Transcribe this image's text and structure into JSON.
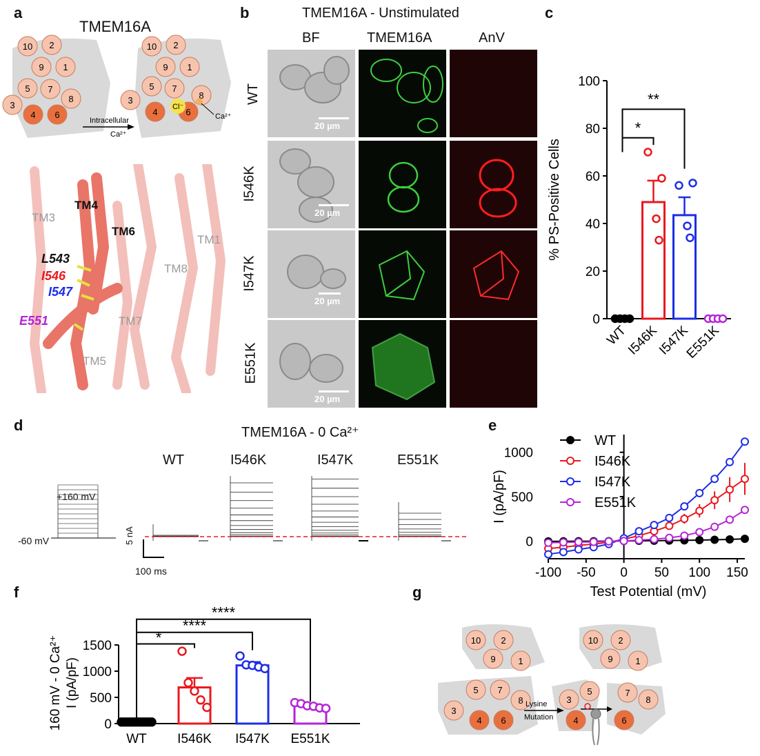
{
  "panels": {
    "a": "a",
    "b": "b",
    "c": "c",
    "d": "d",
    "e": "e",
    "f": "f",
    "g": "g"
  },
  "panel_a": {
    "title": "TMEM16A",
    "helices_left": [
      "10",
      "2",
      "9",
      "1",
      "5",
      "7",
      "8",
      "3",
      "4",
      "6"
    ],
    "helices_right": [
      "10",
      "2",
      "9",
      "1",
      "5",
      "7",
      "8",
      "3",
      "4",
      "6"
    ],
    "arrow_label_1": "Intracellular",
    "arrow_label_2": "Ca²⁺",
    "ion_cl": "Cl⁻",
    "ion_ca": "Ca²⁺",
    "structure_labels": {
      "tm3": "TM3",
      "tm4": "TM4",
      "tm6": "TM6",
      "tm1": "TM1",
      "tm8": "TM8",
      "tm7": "TM7",
      "tm5": "TM5",
      "l543": "L543",
      "i546": "I546",
      "i547": "I547",
      "e551": "E551"
    }
  },
  "panel_b": {
    "title": "TMEM16A - Unstimulated",
    "columns": [
      "BF",
      "TMEM16A",
      "AnV"
    ],
    "rows": [
      "WT",
      "I546K",
      "I547K",
      "E551K"
    ],
    "scale_bar": "20 µm"
  },
  "panel_d": {
    "title": "TMEM16A - 0 Ca²⁺",
    "voltage_top": "+160 mV",
    "voltage_bottom": "-60 mV",
    "traces": [
      "WT",
      "I546K",
      "I547K",
      "E551K"
    ],
    "scale_current": "5 nA",
    "scale_time": "100 ms"
  },
  "panel_g": {
    "helices_left": [
      "10",
      "2",
      "9",
      "1",
      "5",
      "7",
      "8",
      "3",
      "4",
      "6"
    ],
    "helices_right": [
      "10",
      "2",
      "9",
      "1",
      "3",
      "5",
      "7",
      "8",
      "4",
      "6"
    ],
    "arrow_label_1": "Lysine",
    "arrow_label_2": "Mutation"
  },
  "colors": {
    "wt": "#000000",
    "i546k": "#e8191e",
    "i547k": "#1c2ee6",
    "e551k": "#b424d6",
    "helix": "#f6c4ae",
    "helix_dark": "#e8703f",
    "panel_grey": "#d9d9d9"
  },
  "chart_data": [
    {
      "id": "c",
      "type": "bar",
      "ylabel": "% PS-Positive Cells",
      "ylim": [
        0,
        100
      ],
      "yticks": [
        0,
        20,
        40,
        60,
        80,
        100
      ],
      "categories": [
        "WT",
        "I546K",
        "I547K",
        "E551K"
      ],
      "values": [
        0,
        49,
        43.5,
        0
      ],
      "errors": [
        0,
        9,
        7.5,
        0
      ],
      "points": [
        [
          0,
          0,
          0,
          0
        ],
        [
          70,
          59,
          42,
          33
        ],
        [
          56,
          57,
          39,
          34
        ],
        [
          0,
          0,
          0,
          0
        ]
      ],
      "significance": [
        "*",
        "**"
      ]
    },
    {
      "id": "e",
      "type": "line",
      "xlabel": "Test Potential (mV)",
      "ylabel": "I (pA/pF)",
      "xlim": [
        -100,
        160
      ],
      "ylim": [
        -200,
        1200
      ],
      "xticks": [
        -100,
        -50,
        0,
        50,
        100,
        150
      ],
      "yticks": [
        0,
        500,
        1000
      ],
      "x": [
        -100,
        -80,
        -60,
        -40,
        -20,
        0,
        20,
        40,
        60,
        80,
        100,
        120,
        140,
        160
      ],
      "series": [
        {
          "name": "WT",
          "values": [
            -5,
            -4,
            -3,
            -3,
            -2,
            0,
            2,
            3,
            5,
            7,
            10,
            14,
            18,
            25
          ],
          "errors": [
            0,
            0,
            0,
            0,
            0,
            0,
            0,
            0,
            0,
            0,
            0,
            0,
            0,
            0
          ]
        },
        {
          "name": "I546K",
          "values": [
            -85,
            -70,
            -50,
            -35,
            -15,
            20,
            60,
            110,
            170,
            250,
            340,
            460,
            580,
            700
          ],
          "errors": [
            10,
            8,
            7,
            6,
            5,
            5,
            15,
            25,
            40,
            55,
            75,
            100,
            140,
            180
          ]
        },
        {
          "name": "I547K",
          "values": [
            -150,
            -125,
            -95,
            -70,
            -35,
            30,
            110,
            180,
            260,
            390,
            540,
            700,
            890,
            1120
          ],
          "errors": [
            10,
            8,
            7,
            6,
            5,
            5,
            10,
            15,
            20,
            25,
            30,
            35,
            40,
            45
          ]
        },
        {
          "name": "E551K",
          "values": [
            -20,
            -15,
            -12,
            -10,
            -5,
            0,
            10,
            20,
            35,
            60,
            100,
            160,
            240,
            350
          ],
          "errors": [
            3,
            3,
            3,
            3,
            3,
            3,
            4,
            5,
            6,
            8,
            10,
            15,
            25,
            40
          ]
        }
      ]
    },
    {
      "id": "f",
      "type": "bar",
      "ylabel_line1": "160 mV - 0 Ca²⁺",
      "ylabel_line2": "I (pA/pF)",
      "ylim": [
        0,
        1500
      ],
      "yticks": [
        0,
        500,
        1000,
        1500
      ],
      "categories": [
        "WT",
        "I546K",
        "I547K",
        "E551K"
      ],
      "values": [
        30,
        690,
        1110,
        340
      ],
      "errors": [
        5,
        180,
        65,
        30
      ],
      "points": [
        [
          30,
          30,
          30,
          30,
          30,
          30,
          30,
          30,
          30,
          30,
          30,
          30
        ],
        [
          1380,
          780,
          620,
          450,
          310
        ],
        [
          1290,
          1120,
          1110,
          1080,
          1050
        ],
        [
          400,
          380,
          340,
          330,
          300,
          290
        ]
      ],
      "significance": [
        "*",
        "****",
        "****"
      ]
    }
  ]
}
